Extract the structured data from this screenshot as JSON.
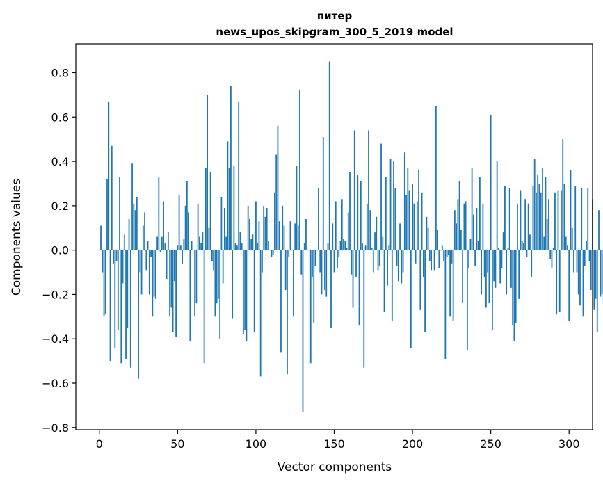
{
  "chart_data": {
    "type": "bar",
    "title": "питер",
    "subtitle": "news_upos_skipgram_300_5_2019 model",
    "xlabel": "Vector components",
    "ylabel": "Components values",
    "xlim": [
      -15,
      315
    ],
    "ylim": [
      -0.81,
      0.93
    ],
    "xticks": [
      0,
      50,
      100,
      150,
      200,
      250,
      300
    ],
    "xtick_labels": [
      "0",
      "50",
      "100",
      "150",
      "200",
      "250",
      "300"
    ],
    "yticks": [
      -0.8,
      -0.6,
      -0.4,
      -0.2,
      0.0,
      0.2,
      0.4,
      0.6,
      0.8
    ],
    "ytick_labels": [
      "−0.8",
      "−0.6",
      "−0.4",
      "−0.2",
      "0.0",
      "0.2",
      "0.4",
      "0.6",
      "0.8"
    ],
    "grid": false,
    "legend": "none",
    "bar_color": "#1f77b4",
    "values": [
      0.0,
      0.11,
      -0.1,
      -0.3,
      -0.29,
      0.32,
      0.67,
      -0.5,
      0.47,
      -0.06,
      -0.44,
      -0.05,
      -0.36,
      0.33,
      -0.51,
      -0.15,
      0.07,
      -0.49,
      -0.35,
      0.14,
      -0.53,
      0.39,
      0.21,
      0.18,
      0.24,
      -0.58,
      -0.1,
      -0.2,
      0.11,
      0.17,
      -0.09,
      0.04,
      -0.2,
      -0.03,
      -0.3,
      -0.21,
      -0.22,
      0.06,
      0.33,
      -0.01,
      0.06,
      0.22,
      0.03,
      -0.13,
      0.08,
      -0.3,
      -0.26,
      -0.37,
      -0.14,
      -0.39,
      0.02,
      0.25,
      0.02,
      -0.06,
      0.05,
      0.2,
      0.31,
      0.17,
      -0.41,
      0.04,
      0.0,
      -0.3,
      -0.24,
      0.21,
      0.06,
      0.03,
      0.08,
      -0.51,
      0.37,
      0.7,
      0.1,
      0.35,
      -0.05,
      -0.09,
      -0.3,
      -0.24,
      -0.22,
      -0.4,
      0.24,
      -0.15,
      0.19,
      0.06,
      0.49,
      0.37,
      0.74,
      -0.31,
      0.38,
      0.03,
      0.02,
      0.67,
      0.08,
      0.03,
      -0.38,
      -0.36,
      -0.41,
      0.2,
      0.14,
      0.05,
      0.07,
      -0.37,
      0.22,
      0.03,
      0.13,
      -0.57,
      -0.1,
      0.2,
      0.15,
      0.19,
      0.04,
      0.0,
      -0.03,
      -0.02,
      0.26,
      0.43,
      0.56,
      0.13,
      -0.46,
      0.2,
      0.11,
      -0.18,
      -0.56,
      -0.03,
      0.13,
      0.0,
      -0.3,
      0.12,
      0.38,
      0.11,
      0.72,
      -0.11,
      -0.73,
      0.03,
      0.14,
      0.0,
      0.0,
      -0.51,
      -0.12,
      -0.33,
      -0.07,
      0.0,
      0.28,
      -0.1,
      -0.2,
      0.51,
      -0.18,
      -0.21,
      0.03,
      0.85,
      -0.35,
      0.12,
      -0.1,
      0.22,
      -0.08,
      -0.03,
      0.04,
      0.23,
      0.05,
      0.04,
      0.01,
      0.17,
      0.35,
      -0.11,
      -0.26,
      0.54,
      -0.12,
      0.34,
      -0.34,
      0.31,
      0.03,
      -0.53,
      0.02,
      0.21,
      0.54,
      0.18,
      0.01,
      -0.1,
      0.08,
      0.15,
      -0.09,
      -0.07,
      0.48,
      0.06,
      -0.28,
      0.33,
      -0.16,
      0.02,
      0.41,
      -0.32,
      0.4,
      0.28,
      -0.07,
      -0.14,
      0.12,
      -0.15,
      -0.1,
      0.44,
      0.25,
      0.37,
      0.27,
      -0.44,
      0.3,
      0.21,
      -0.06,
      0.22,
      0.36,
      -0.27,
      0.26,
      -0.12,
      -0.37,
      0.15,
      0.1,
      -0.05,
      -0.09,
      0.0,
      -0.09,
      0.65,
      0.09,
      -0.08,
      0.0,
      0.02,
      -0.05,
      -0.49,
      -0.03,
      -0.02,
      -0.3,
      -0.06,
      -0.32,
      0.18,
      0.12,
      0.23,
      0.31,
      0.09,
      -0.24,
      0.21,
      0.22,
      -0.45,
      -0.08,
      0.05,
      0.37,
      0.16,
      -0.07,
      0.19,
      0.04,
      0.33,
      -0.2,
      0.21,
      -0.12,
      -0.26,
      -0.1,
      -0.24,
      0.61,
      -0.36,
      -0.14,
      -0.17,
      0.4,
      0.01,
      -0.15,
      -0.08,
      0.08,
      0.29,
      -0.2,
      0.01,
      0.28,
      -0.17,
      -0.34,
      -0.41,
      -0.33,
      0.21,
      -0.22,
      0.27,
      0.04,
      0.03,
      0.23,
      -0.03,
      0.21,
      0.07,
      -0.12,
      0.29,
      0.41,
      0.26,
      0.34,
      0.3,
      0.26,
      0.37,
      0.06,
      0.33,
      0.14,
      0.23,
      -0.04,
      -0.08,
      0.01,
      0.26,
      -0.29,
      0.27,
      -0.28,
      0.27,
      0.5,
      0.3,
      0.06,
      0.02,
      -0.32,
      0.36,
      0.1,
      -0.1,
      0.29,
      -0.1,
      -0.2,
      -0.25,
      0.28,
      -0.3,
      -0.07,
      0.04,
      0.28,
      -0.05,
      -0.18,
      0.23,
      -0.27,
      -0.22,
      -0.37,
      0.18,
      -0.21,
      -0.2,
      -0.24
    ]
  }
}
